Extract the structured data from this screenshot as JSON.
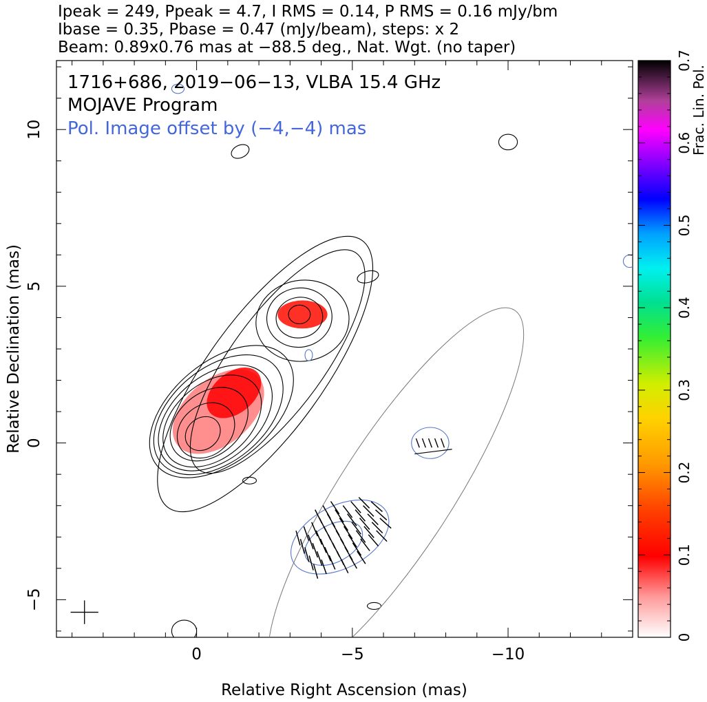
{
  "header": {
    "line1": "Ipeak = 249, Ppeak = 4.7, I RMS = 0.14, P RMS = 0.16 mJy/bm",
    "line2": "Ibase = 0.35, Pbase = 0.47 (mJy/beam), steps: x 2",
    "line3": "Beam: 0.89x0.76 mas at −88.5 deg., Nat. Wgt. (no taper)"
  },
  "annotations": {
    "source": "1716+686, 2019−06−13, VLBA 15.4 GHz",
    "program": "MOJAVE Program",
    "pol_offset": "Pol. Image offset by (−4,−4) mas"
  },
  "colors": {
    "total_intensity_contour": "#000000",
    "pol_intensity_contour": "#5577cc",
    "offset_total_contour": "#777777",
    "evpa_ticks": "#000000",
    "pol_text": "#4466dd"
  },
  "chart_data": {
    "type": "heatmap",
    "xlabel": "Relative Right Ascension (mas)",
    "ylabel": "Relative Declination (mas)",
    "xlim": [
      4.5,
      -14
    ],
    "ylim": [
      -6.2,
      12.2
    ],
    "x_ticks": [
      0,
      -5,
      -10
    ],
    "x_tick_labels": [
      "0",
      "−5",
      "−10"
    ],
    "y_ticks": [
      -5,
      0,
      5,
      10
    ],
    "y_tick_labels": [
      "−5",
      "0",
      "5",
      "10"
    ],
    "beam": {
      "major_mas": 0.89,
      "minor_mas": 0.76,
      "pa_deg": -88.5,
      "center": [
        3.6,
        -5.4
      ]
    },
    "colorbar": {
      "label": "Frac. Lin. Pol.",
      "range": [
        0,
        0.7
      ],
      "ticks": [
        0,
        0.1,
        0.2,
        0.3,
        0.4,
        0.5,
        0.6,
        0.7
      ],
      "tick_labels": [
        "0",
        "0.1",
        "0.2",
        "0.3",
        "0.4",
        "0.5",
        "0.6",
        "0.7"
      ]
    },
    "contours": {
      "total_intensity": [
        {
          "center": [
            -0.2,
            0.3
          ],
          "rx": 0.6,
          "ry": 0.5,
          "rot": -40
        },
        {
          "center": [
            -0.3,
            0.4
          ],
          "rx": 1.0,
          "ry": 0.8,
          "rot": -40
        },
        {
          "center": [
            -0.4,
            0.6
          ],
          "rx": 1.4,
          "ry": 1.0,
          "rot": -40
        },
        {
          "center": [
            -0.5,
            0.7
          ],
          "rx": 1.8,
          "ry": 1.2,
          "rot": -40
        },
        {
          "center": [
            -0.6,
            0.8
          ],
          "rx": 2.1,
          "ry": 1.35,
          "rot": -40
        },
        {
          "center": [
            -0.7,
            0.9
          ],
          "rx": 2.4,
          "ry": 1.5,
          "rot": -40
        },
        {
          "center": [
            -0.8,
            1.0
          ],
          "rx": 2.7,
          "ry": 1.6,
          "rot": -40
        },
        {
          "center": [
            -3.3,
            4.1
          ],
          "rx": 0.35,
          "ry": 0.3,
          "rot": 0
        },
        {
          "center": [
            -3.3,
            4.0
          ],
          "rx": 0.75,
          "ry": 0.65,
          "rot": -10
        },
        {
          "center": [
            -3.3,
            4.0
          ],
          "rx": 1.05,
          "ry": 0.95,
          "rot": -10
        },
        {
          "center": [
            -3.4,
            3.9
          ],
          "rx": 1.5,
          "ry": 1.3,
          "rot": -10
        },
        {
          "center": [
            -2.6,
            2.6
          ],
          "rx": 4.3,
          "ry": 1.5,
          "rot": -54
        },
        {
          "center": [
            -2.2,
            2.2
          ],
          "rx": 5.3,
          "ry": 1.85,
          "rot": -54
        },
        {
          "center": [
            -1.7,
            -1.2
          ],
          "rx": 0.22,
          "ry": 0.11,
          "rot": 0
        },
        {
          "center": [
            -5.5,
            5.3
          ],
          "rx": 0.35,
          "ry": 0.18,
          "rot": -15
        },
        {
          "center": [
            -1.4,
            9.3
          ],
          "rx": 0.3,
          "ry": 0.2,
          "rot": -25
        },
        {
          "center": [
            -10.0,
            9.6
          ],
          "rx": 0.3,
          "ry": 0.25,
          "rot": 0
        },
        {
          "center": [
            -5.7,
            -5.2
          ],
          "rx": 0.22,
          "ry": 0.11,
          "rot": 0
        },
        {
          "center": [
            0.4,
            -6.0
          ],
          "rx": 0.4,
          "ry": 0.35,
          "rot": 0
        }
      ],
      "polarized_intensity": [
        {
          "center": [
            -4.6,
            -3.0
          ],
          "rx": 1.7,
          "ry": 1.0,
          "rot": -28
        },
        {
          "center": [
            -4.4,
            -3.2
          ],
          "rx": 1.0,
          "ry": 0.6,
          "rot": -28
        },
        {
          "center": [
            -7.5,
            0.0
          ],
          "rx": 0.6,
          "ry": 0.5,
          "rot": 0
        },
        {
          "center": [
            0.6,
            11.3
          ],
          "rx": 0.2,
          "ry": 0.15,
          "rot": 0
        },
        {
          "center": [
            -3.6,
            2.8
          ],
          "rx": 0.12,
          "ry": 0.18,
          "rot": 0
        },
        {
          "center": [
            -13.9,
            5.8
          ],
          "rx": 0.2,
          "ry": 0.2,
          "rot": 0
        }
      ],
      "offset_total_intensity": [
        {
          "center": [
            -6.4,
            -1.6
          ],
          "rx": 7.0,
          "ry": 1.8,
          "rot": -57
        }
      ]
    },
    "fractional_pol_regions": [
      {
        "center": [
          -0.7,
          1.0
        ],
        "rx": 1.7,
        "ry": 1.05,
        "rot": -40,
        "frac": 0.06
      },
      {
        "center": [
          -1.2,
          1.6
        ],
        "rx": 1.0,
        "ry": 0.65,
        "rot": -40,
        "frac": 0.1
      },
      {
        "center": [
          -3.4,
          4.1
        ],
        "rx": 0.8,
        "ry": 0.45,
        "rot": 0,
        "frac": 0.11
      }
    ]
  }
}
